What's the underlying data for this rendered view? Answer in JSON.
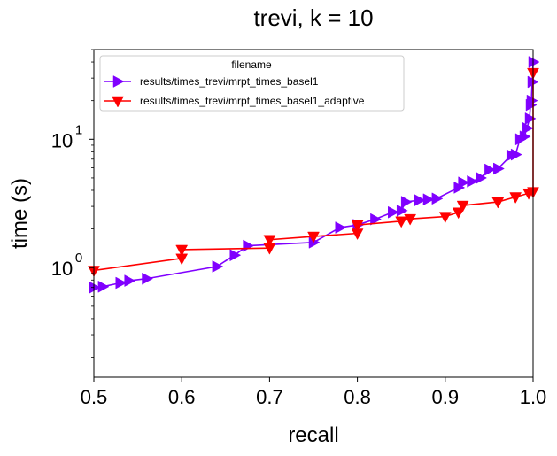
{
  "chart_data": {
    "type": "line",
    "title": "trevi, k = 10",
    "xlabel": "recall",
    "ylabel": "time (s)",
    "xlim": [
      0.5,
      1.0
    ],
    "ylim": [
      0.14,
      50
    ],
    "yscale": "log",
    "x_ticks": [
      "0.5",
      "0.6",
      "0.7",
      "0.8",
      "0.9",
      "1.0"
    ],
    "y_ticks": [
      {
        "base": "10",
        "exp": "0",
        "value": 1
      },
      {
        "base": "10",
        "exp": "1",
        "value": 10
      }
    ],
    "grid": false,
    "legend": {
      "title": "filename",
      "placement": "top-left"
    },
    "series": [
      {
        "name": "results/times_trevi/mrpt_times_basel1",
        "color": "#8000ff",
        "marker": "triangle-right",
        "points": [
          [
            0.5,
            0.7
          ],
          [
            0.51,
            0.71
          ],
          [
            0.53,
            0.76
          ],
          [
            0.54,
            0.79
          ],
          [
            0.56,
            0.82
          ],
          [
            0.64,
            1.02
          ],
          [
            0.66,
            1.25
          ],
          [
            0.675,
            1.48
          ],
          [
            0.75,
            1.57
          ],
          [
            0.78,
            2.05
          ],
          [
            0.8,
            2.15
          ],
          [
            0.82,
            2.38
          ],
          [
            0.84,
            2.7
          ],
          [
            0.85,
            2.78
          ],
          [
            0.855,
            3.25
          ],
          [
            0.87,
            3.35
          ],
          [
            0.88,
            3.4
          ],
          [
            0.89,
            3.45
          ],
          [
            0.915,
            4.2
          ],
          [
            0.92,
            4.6
          ],
          [
            0.93,
            4.7
          ],
          [
            0.94,
            5.0
          ],
          [
            0.95,
            5.8
          ],
          [
            0.96,
            5.9
          ],
          [
            0.975,
            7.5
          ],
          [
            0.98,
            7.6
          ],
          [
            0.985,
            10.0
          ],
          [
            0.99,
            10.5
          ],
          [
            0.993,
            12.2
          ],
          [
            0.996,
            14.5
          ],
          [
            0.997,
            18.5
          ],
          [
            0.998,
            20.0
          ],
          [
            0.999,
            28.0
          ],
          [
            1.0,
            40.0
          ]
        ]
      },
      {
        "name": "results/times_trevi/mrpt_times_basel1_adaptive",
        "color": "#ff0000",
        "marker": "triangle-down",
        "points": [
          [
            0.5,
            0.95
          ],
          [
            0.6,
            1.18
          ],
          [
            0.6,
            1.38
          ],
          [
            0.7,
            1.42
          ],
          [
            0.7,
            1.65
          ],
          [
            0.75,
            1.75
          ],
          [
            0.8,
            1.85
          ],
          [
            0.8,
            2.15
          ],
          [
            0.85,
            2.3
          ],
          [
            0.86,
            2.4
          ],
          [
            0.9,
            2.5
          ],
          [
            0.915,
            2.7
          ],
          [
            0.92,
            3.05
          ],
          [
            0.96,
            3.25
          ],
          [
            0.98,
            3.55
          ],
          [
            0.995,
            3.8
          ],
          [
            1.0,
            3.9
          ],
          [
            1.0,
            33.0
          ]
        ]
      }
    ]
  }
}
